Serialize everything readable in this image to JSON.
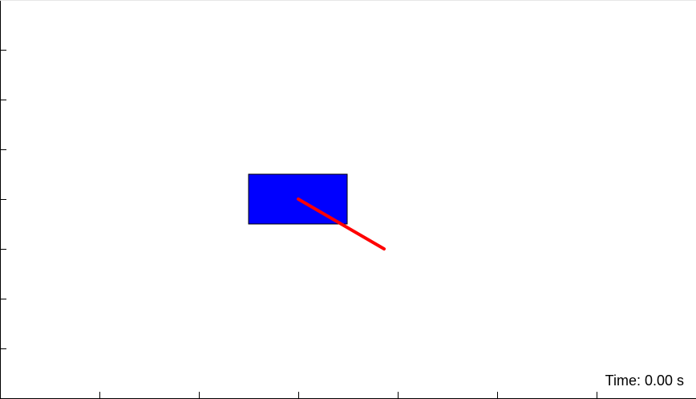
{
  "colors": {
    "background": "#ffffff",
    "body_fill": "#0000ff",
    "body_stroke": "#000000",
    "pole": "#ff0000",
    "axes": "#000000"
  },
  "time_readout": "Time: 0.00 s"
}
